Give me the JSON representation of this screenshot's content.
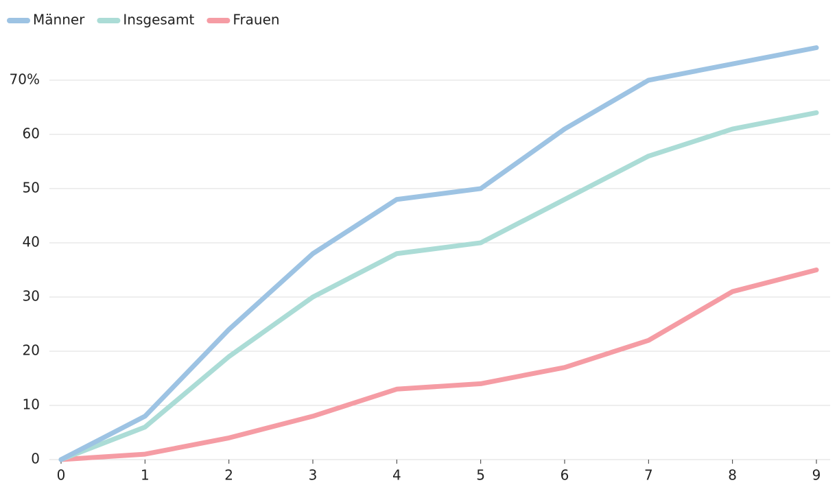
{
  "chart_data": {
    "type": "line",
    "x": [
      0,
      1,
      2,
      3,
      4,
      5,
      6,
      7,
      8,
      9
    ],
    "series": [
      {
        "name": "Männer",
        "color": "#9dc3e3",
        "values": [
          0,
          8,
          24,
          38,
          48,
          50,
          61,
          70,
          73,
          76
        ]
      },
      {
        "name": "Insgesamt",
        "color": "#abdcd6",
        "values": [
          0,
          6,
          19,
          30,
          38,
          40,
          48,
          56,
          61,
          64
        ]
      },
      {
        "name": "Frauen",
        "color": "#f59ca4",
        "values": [
          0,
          1,
          4,
          8,
          13,
          14,
          17,
          22,
          31,
          35
        ]
      }
    ],
    "xlim": [
      0,
      9
    ],
    "xticks": [
      0,
      1,
      2,
      3,
      4,
      5,
      6,
      7,
      8,
      9
    ],
    "ylim": [
      0,
      76
    ],
    "yticks": [
      0,
      10,
      20,
      30,
      40,
      50,
      60,
      {
        "value": 70,
        "label": "70%"
      }
    ],
    "grid": true,
    "legend": "top-left"
  }
}
